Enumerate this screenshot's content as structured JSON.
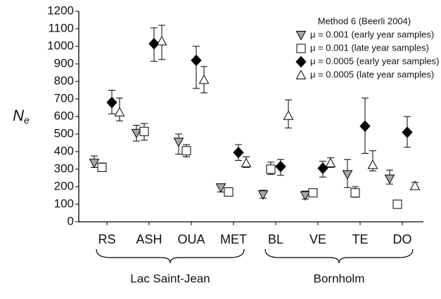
{
  "chart_data": {
    "type": "scatter",
    "y_label": {
      "main": "N",
      "sub": "e"
    },
    "categories": [
      "RS",
      "ASH",
      "OUA",
      "MET",
      "BL",
      "VE",
      "TE",
      "DO"
    ],
    "groups": [
      {
        "label": "Lac Saint-Jean",
        "categories": [
          "RS",
          "ASH",
          "OUA",
          "MET"
        ]
      },
      {
        "label": "Bornholm",
        "categories": [
          "BL",
          "VE",
          "TE",
          "DO"
        ]
      }
    ],
    "legend_title": "Method 6 (Beerli 2004)",
    "legend_position": "upper right",
    "ylim": [
      0,
      1200
    ],
    "yticks": [
      0,
      100,
      200,
      300,
      400,
      500,
      600,
      700,
      800,
      900,
      1000,
      1100,
      1200
    ],
    "series": [
      {
        "name": "μ = 0.001 (early year samples)",
        "marker": "triangle-down",
        "color": "#a6a6a6",
        "values": [
          335,
          505,
          455,
          195,
          155,
          150,
          270,
          245
        ],
        "errors_minus": [
          25,
          45,
          70,
          25,
          20,
          20,
          75,
          30
        ],
        "errors_plus": [
          40,
          45,
          45,
          20,
          25,
          25,
          85,
          50
        ]
      },
      {
        "name": "μ = 0.001 (late year samples)",
        "marker": "square",
        "color": "#ffffff",
        "values": [
          310,
          515,
          405,
          170,
          300,
          165,
          165,
          100
        ],
        "errors_minus": [
          20,
          50,
          35,
          null,
          30,
          null,
          25,
          null
        ],
        "errors_plus": [
          25,
          45,
          35,
          null,
          40,
          null,
          35,
          null
        ]
      },
      {
        "name": "μ = 0.0005 (early year samples)",
        "marker": "diamond",
        "color": "#000000",
        "values": [
          680,
          1015,
          920,
          395,
          315,
          305,
          545,
          510
        ],
        "errors_minus": [
          65,
          100,
          160,
          45,
          50,
          50,
          155,
          85
        ],
        "errors_plus": [
          70,
          90,
          80,
          45,
          40,
          40,
          160,
          90
        ]
      },
      {
        "name": "μ = 0.0005 (late year samples)",
        "marker": "triangle-up",
        "color": "#ffffff",
        "values": [
          625,
          1030,
          810,
          335,
          605,
          335,
          325,
          205
        ],
        "errors_minus": [
          50,
          105,
          75,
          25,
          70,
          25,
          35,
          20
        ],
        "errors_plus": [
          80,
          90,
          75,
          35,
          90,
          30,
          80,
          20
        ]
      }
    ]
  }
}
